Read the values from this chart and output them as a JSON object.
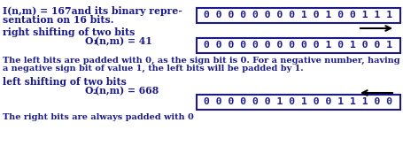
{
  "bg_color": "#ffffff",
  "text_color": "#1a1a8c",
  "box_color": "#1a1a8c",
  "arrow_color": "#000000",
  "title_line1": "I(n,m) = 167and its binary repre-",
  "title_line2": "sentation on 16 bits.",
  "bits_row1": "0 0 0 0 0 0 0 0 1 0 1 0 0 1 1 1",
  "right_shift_label1": "right shifting of two bits",
  "right_shift_label2_main": "O",
  "right_shift_label2_sub": "1",
  "right_shift_label2_rest": "(n,m) = 41",
  "bits_row2": "0 0 0 0 0 0 0 0 0 0 1 0 1 0 0 1",
  "right_shift_note1": "The left bits are padded with 0, as the sign bit is 0. For a negative number, having",
  "right_shift_note2": "a negative sign bit of value 1, the left bits will be padded by 1.",
  "left_shift_label1": "left shifting of two bits",
  "left_shift_label2_main": "O",
  "left_shift_label2_sub": "2",
  "left_shift_label2_rest": "(n,m) = 668",
  "bits_row3": "0 0 0 0 0 0 1 0 1 0 0 1 1 1 0 0",
  "left_shift_note": "The right bits are always padded with 0",
  "fs_main": 7.8,
  "fs_bits": 8.2,
  "fs_note": 7.0,
  "fs_sub": 5.5
}
